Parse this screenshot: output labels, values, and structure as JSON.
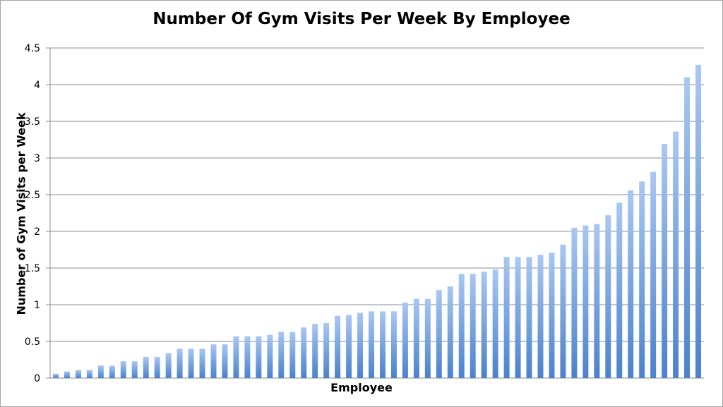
{
  "chart_data": {
    "type": "bar",
    "title": "Number Of Gym Visits Per Week By Employee",
    "xlabel": "Employee",
    "ylabel": "Number of Gym Visits per Week",
    "ylim": [
      0,
      4.5
    ],
    "yticks": [
      "0",
      "0.5",
      "1",
      "1.5",
      "2",
      "2.5",
      "3",
      "3.5",
      "4",
      "4.5"
    ],
    "grid": true,
    "values": [
      0.06,
      0.09,
      0.11,
      0.11,
      0.17,
      0.17,
      0.23,
      0.23,
      0.29,
      0.29,
      0.34,
      0.4,
      0.4,
      0.4,
      0.46,
      0.46,
      0.57,
      0.57,
      0.57,
      0.59,
      0.63,
      0.63,
      0.69,
      0.74,
      0.75,
      0.85,
      0.86,
      0.89,
      0.91,
      0.91,
      0.91,
      1.03,
      1.08,
      1.08,
      1.2,
      1.25,
      1.42,
      1.42,
      1.45,
      1.48,
      1.65,
      1.65,
      1.65,
      1.68,
      1.71,
      1.82,
      2.05,
      2.08,
      2.1,
      2.22,
      2.39,
      2.56,
      2.68,
      2.81,
      3.19,
      3.36,
      4.1,
      4.27
    ],
    "colors": {
      "bar_top": "#a9c7f2",
      "bar_bottom": "#4a82cc",
      "grid": "#8c8c8c"
    }
  }
}
